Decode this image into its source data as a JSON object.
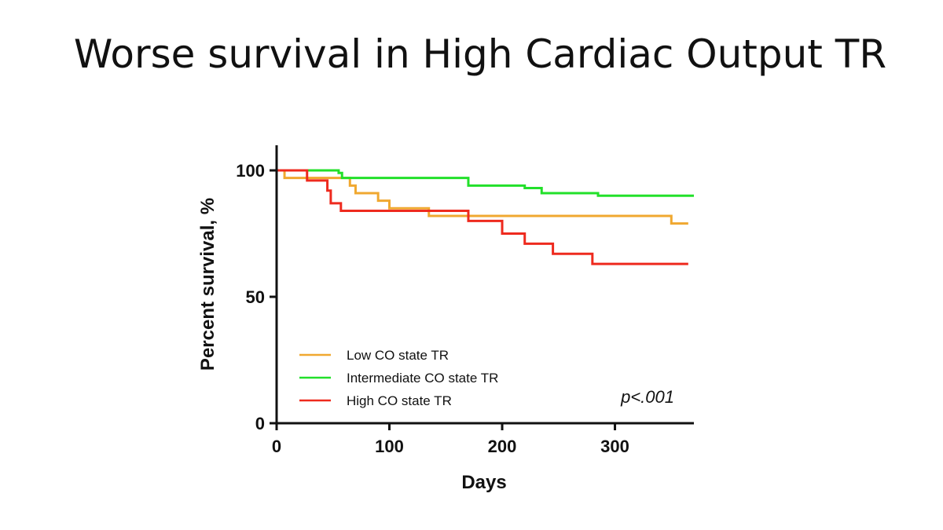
{
  "slide": {
    "title": "Worse survival in High Cardiac Output TR"
  },
  "chart_data": {
    "type": "line",
    "step": true,
    "xlabel": "Days",
    "ylabel": "Percent survival, %",
    "xlim": [
      0,
      370
    ],
    "ylim": [
      0,
      110
    ],
    "xticks": [
      0,
      100,
      200,
      300
    ],
    "yticks": [
      0,
      50,
      100
    ],
    "legend_position": "bottom-left",
    "annotation": "p<.001",
    "series": [
      {
        "name": "Low CO state TR",
        "color": "#F0A830",
        "x": [
          0,
          7,
          55,
          65,
          70,
          90,
          100,
          135,
          170,
          350,
          365
        ],
        "y": [
          100,
          97,
          97,
          94,
          91,
          88,
          85,
          82,
          82,
          79,
          79
        ]
      },
      {
        "name": "Intermediate CO state TR",
        "color": "#22E02A",
        "x": [
          0,
          55,
          58,
          170,
          220,
          235,
          285,
          370
        ],
        "y": [
          100,
          99,
          97,
          94,
          93,
          91,
          90,
          90
        ]
      },
      {
        "name": "High CO state TR",
        "color": "#EE2A1E",
        "x": [
          0,
          27,
          45,
          48,
          57,
          170,
          200,
          220,
          245,
          280,
          365
        ],
        "y": [
          100,
          96,
          92,
          87,
          84,
          80,
          75,
          71,
          67,
          63,
          63
        ]
      }
    ]
  }
}
